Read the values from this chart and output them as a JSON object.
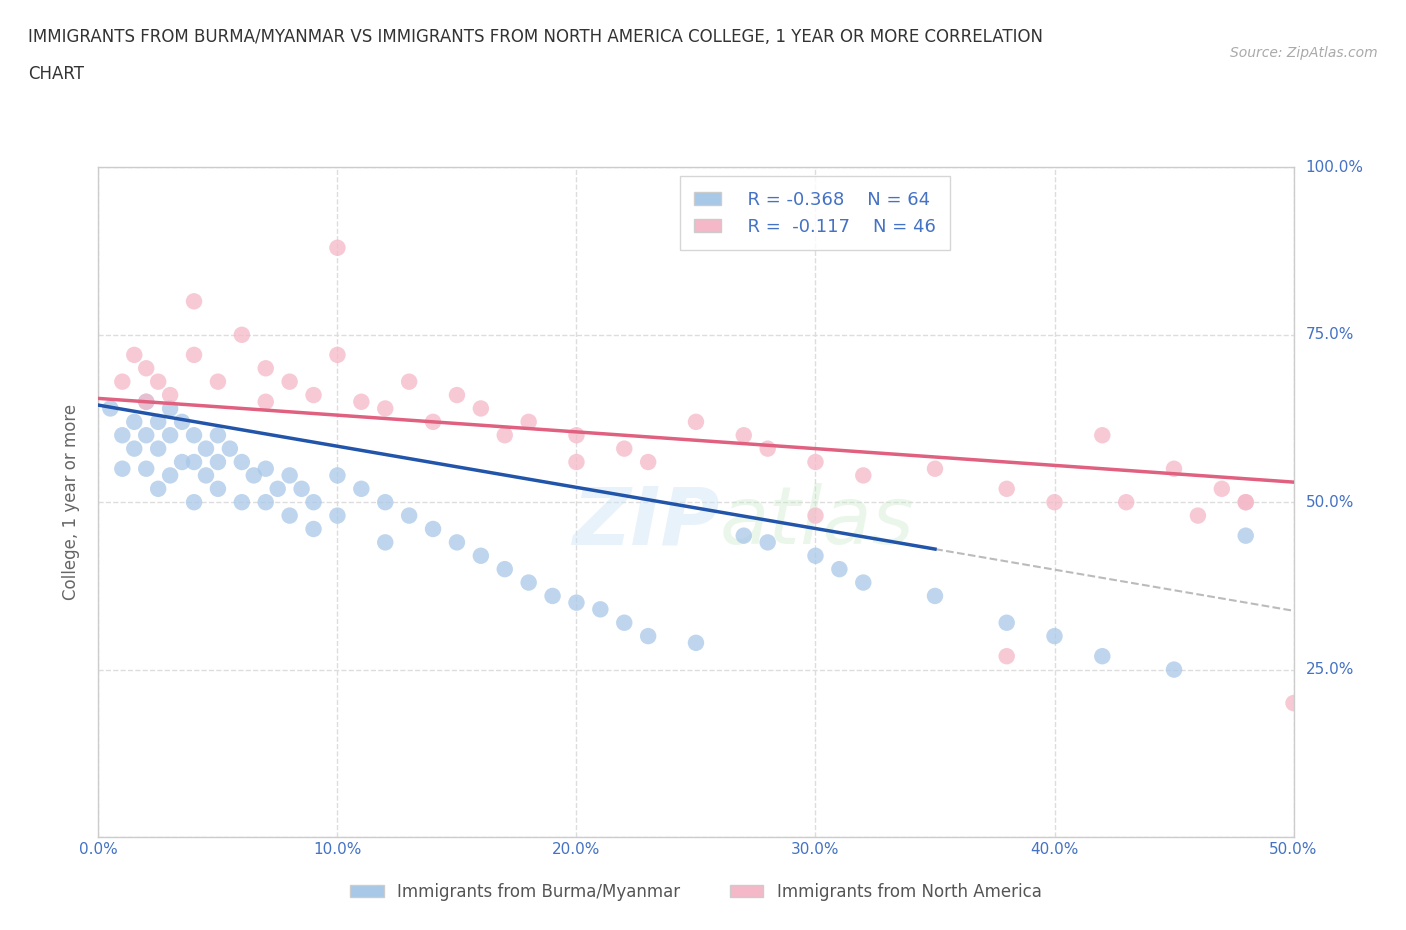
{
  "title_line1": "IMMIGRANTS FROM BURMA/MYANMAR VS IMMIGRANTS FROM NORTH AMERICA COLLEGE, 1 YEAR OR MORE CORRELATION",
  "title_line2": "CHART",
  "source_text": "Source: ZipAtlas.com",
  "watermark": "ZIPatlas",
  "xlabel_blue": "Immigrants from Burma/Myanmar",
  "xlabel_pink": "Immigrants from North America",
  "ylabel": "College, 1 year or more",
  "R_blue": -0.368,
  "N_blue": 64,
  "R_pink": -0.117,
  "N_pink": 46,
  "blue_color": "#a8c8e8",
  "pink_color": "#f4b8c8",
  "blue_line_color": "#2255aa",
  "pink_line_color": "#e06080",
  "dashed_line_color": "#bbbbbb",
  "xlim": [
    0.0,
    0.5
  ],
  "ylim": [
    0.0,
    1.0
  ],
  "xticks": [
    0.0,
    0.1,
    0.2,
    0.3,
    0.4,
    0.5
  ],
  "yticks": [
    0.0,
    0.25,
    0.5,
    0.75,
    1.0
  ],
  "blue_x": [
    0.005,
    0.01,
    0.01,
    0.015,
    0.015,
    0.02,
    0.02,
    0.02,
    0.025,
    0.025,
    0.025,
    0.03,
    0.03,
    0.03,
    0.035,
    0.035,
    0.04,
    0.04,
    0.04,
    0.045,
    0.045,
    0.05,
    0.05,
    0.05,
    0.055,
    0.06,
    0.06,
    0.065,
    0.07,
    0.07,
    0.075,
    0.08,
    0.08,
    0.085,
    0.09,
    0.09,
    0.1,
    0.1,
    0.11,
    0.12,
    0.12,
    0.13,
    0.14,
    0.15,
    0.16,
    0.17,
    0.18,
    0.19,
    0.2,
    0.21,
    0.22,
    0.23,
    0.25,
    0.27,
    0.28,
    0.3,
    0.31,
    0.32,
    0.35,
    0.38,
    0.4,
    0.42,
    0.45,
    0.48
  ],
  "blue_y": [
    0.64,
    0.6,
    0.55,
    0.62,
    0.58,
    0.65,
    0.6,
    0.55,
    0.62,
    0.58,
    0.52,
    0.64,
    0.6,
    0.54,
    0.62,
    0.56,
    0.6,
    0.56,
    0.5,
    0.58,
    0.54,
    0.6,
    0.56,
    0.52,
    0.58,
    0.56,
    0.5,
    0.54,
    0.55,
    0.5,
    0.52,
    0.54,
    0.48,
    0.52,
    0.5,
    0.46,
    0.54,
    0.48,
    0.52,
    0.5,
    0.44,
    0.48,
    0.46,
    0.44,
    0.42,
    0.4,
    0.38,
    0.36,
    0.35,
    0.34,
    0.32,
    0.3,
    0.29,
    0.45,
    0.44,
    0.42,
    0.4,
    0.38,
    0.36,
    0.32,
    0.3,
    0.27,
    0.25,
    0.45
  ],
  "pink_x": [
    0.01,
    0.015,
    0.02,
    0.02,
    0.025,
    0.03,
    0.04,
    0.04,
    0.05,
    0.06,
    0.07,
    0.07,
    0.08,
    0.09,
    0.1,
    0.11,
    0.12,
    0.13,
    0.14,
    0.15,
    0.16,
    0.17,
    0.18,
    0.2,
    0.22,
    0.23,
    0.25,
    0.27,
    0.28,
    0.3,
    0.32,
    0.35,
    0.38,
    0.4,
    0.42,
    0.43,
    0.45,
    0.46,
    0.47,
    0.48,
    0.5,
    0.1,
    0.2,
    0.3,
    0.38,
    0.48
  ],
  "pink_y": [
    0.68,
    0.72,
    0.7,
    0.65,
    0.68,
    0.66,
    0.72,
    0.8,
    0.68,
    0.75,
    0.7,
    0.65,
    0.68,
    0.66,
    0.72,
    0.65,
    0.64,
    0.68,
    0.62,
    0.66,
    0.64,
    0.6,
    0.62,
    0.6,
    0.58,
    0.56,
    0.62,
    0.6,
    0.58,
    0.56,
    0.54,
    0.55,
    0.52,
    0.5,
    0.6,
    0.5,
    0.55,
    0.48,
    0.52,
    0.5,
    0.2,
    0.88,
    0.56,
    0.48,
    0.27,
    0.5
  ],
  "background_color": "#ffffff",
  "grid_color": "#dddddd",
  "axis_color": "#cccccc",
  "tick_color": "#4472c4",
  "label_color": "#666666",
  "title_color": "#333333"
}
